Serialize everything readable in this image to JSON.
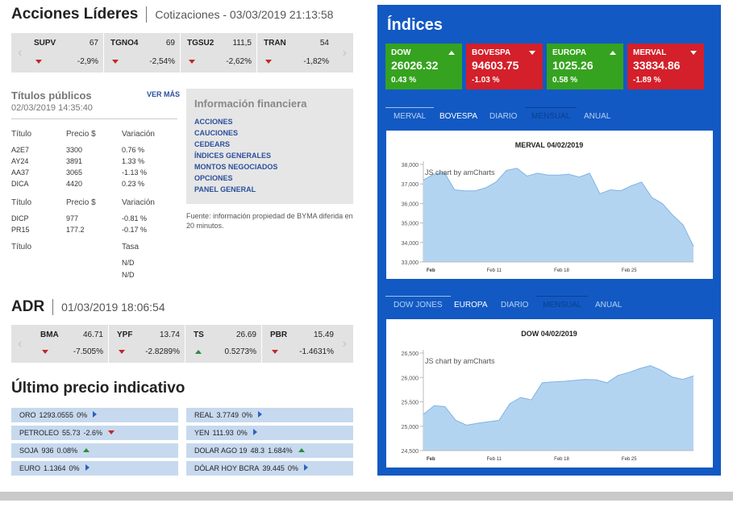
{
  "acciones": {
    "title": "Acciones Líderes",
    "subtitle": "Cotizaciones - 03/03/2019 21:13:58",
    "tickers": [
      {
        "name": "SUPV",
        "price": "67",
        "change": "-2,9%",
        "dir": "down"
      },
      {
        "name": "TGNO4",
        "price": "69",
        "change": "-2,54%",
        "dir": "down"
      },
      {
        "name": "TGSU2",
        "price": "111,5",
        "change": "-2,62%",
        "dir": "down"
      },
      {
        "name": "TRAN",
        "price": "54",
        "change": "-1,82%",
        "dir": "down"
      }
    ]
  },
  "titulos": {
    "title": "Títulos públicos",
    "date": "02/03/2019 14:35:40",
    "more": "VER MÁS",
    "group1": {
      "headers": [
        "Título",
        "Precio $",
        "Variación"
      ],
      "rows": [
        [
          "A2E7",
          "3300",
          "0.76 %"
        ],
        [
          "AY24",
          "3891",
          "1.33 %"
        ],
        [
          "AA37",
          "3065",
          "-1.13 %"
        ],
        [
          "DICA",
          "4420",
          "0.23 %"
        ]
      ]
    },
    "group2": {
      "headers": [
        "Título",
        "Precio $",
        "Variación"
      ],
      "rows": [
        [
          "DICP",
          "977",
          "-0.81 %"
        ],
        [
          "PR15",
          "177.2",
          "-0.17 %"
        ]
      ]
    },
    "group3": {
      "headers": [
        "Título",
        "",
        "Tasa"
      ],
      "rows": [
        [
          "",
          "",
          "N/D"
        ],
        [
          "",
          "",
          "N/D"
        ]
      ]
    }
  },
  "info": {
    "title": "Información financiera",
    "links": [
      "ACCIONES",
      "CAUCIONES",
      "CEDEARS",
      "ÍNDICES GENERALES",
      "MONTOS NEGOCIADOS",
      "OPCIONES",
      "PANEL GENERAL"
    ],
    "fuente": "Fuente: información propiedad de BYMA diferida en 20 minutos."
  },
  "adr": {
    "title": "ADR",
    "subtitle": "01/03/2019 18:06:54",
    "tickers": [
      {
        "name": "BMA",
        "price": "46.71",
        "change": "-7.505%",
        "dir": "down"
      },
      {
        "name": "YPF",
        "price": "13.74",
        "change": "-2.8289%",
        "dir": "down"
      },
      {
        "name": "TS",
        "price": "26.69",
        "change": "0.5273%",
        "dir": "up"
      },
      {
        "name": "PBR",
        "price": "15.49",
        "change": "-1.4631%",
        "dir": "down"
      }
    ]
  },
  "ultimo": {
    "title": "Último precio indicativo",
    "left": [
      {
        "name": "ORO",
        "value": "1293.0555",
        "change": "0%",
        "dir": "flat"
      },
      {
        "name": "PETROLEO",
        "value": "55.73",
        "change": "-2.6%",
        "dir": "down"
      },
      {
        "name": "SOJA",
        "value": "936",
        "change": "0.08%",
        "dir": "up"
      },
      {
        "name": "EURO",
        "value": "1.1364",
        "change": "0%",
        "dir": "flat"
      }
    ],
    "right": [
      {
        "name": "REAL",
        "value": "3.7749",
        "change": "0%",
        "dir": "flat"
      },
      {
        "name": "YEN",
        "value": "111.93",
        "change": "0%",
        "dir": "flat"
      },
      {
        "name": "DOLAR AGO 19",
        "value": "48.3",
        "change": "1.684%",
        "dir": "up"
      },
      {
        "name": "DÓLAR HOY BCRA",
        "value": "39.445",
        "change": "0%",
        "dir": "flat"
      }
    ]
  },
  "indices": {
    "title": "Índices",
    "cards": [
      {
        "name": "DOW",
        "value": "26026.32",
        "pct": "0.43 %",
        "dir": "up",
        "color": "#35a31f"
      },
      {
        "name": "BOVESPA",
        "value": "94603.75",
        "pct": "-1.03 %",
        "dir": "down",
        "color": "#d3202a"
      },
      {
        "name": "EUROPA",
        "value": "1025.26",
        "pct": "0.58 %",
        "dir": "up",
        "color": "#35a31f"
      },
      {
        "name": "MERVAL",
        "value": "33834.86",
        "pct": "-1.89 %",
        "dir": "down",
        "color": "#d3202a"
      }
    ],
    "tabs1": [
      "MERVAL",
      "BOVESPA",
      "DIARIO",
      "MENSUAL",
      "ANUAL"
    ],
    "tabs2": [
      "DOW JONES",
      "EUROPA",
      "DIARIO",
      "MENSUAL",
      "ANUAL"
    ]
  },
  "chart_data": [
    {
      "type": "area",
      "title": "MERVAL 04/02/2019",
      "watermark": "JS chart by amCharts",
      "ylim": [
        33000,
        38000
      ],
      "yticks": [
        "33,000",
        "34,000",
        "35,000",
        "36,000",
        "37,000",
        "38,000"
      ],
      "xticks": [
        "Feb",
        "Feb 11",
        "Feb 18",
        "Feb 25"
      ],
      "values": [
        37200,
        37500,
        37600,
        36700,
        36650,
        36650,
        36800,
        37100,
        37700,
        37800,
        37400,
        37550,
        37450,
        37450,
        37500,
        37350,
        37550,
        36500,
        36700,
        36650,
        36900,
        37100,
        36300,
        36000,
        35400,
        34900,
        33800
      ],
      "grid": false,
      "color": "#b3d4f1"
    },
    {
      "type": "area",
      "title": "DOW 04/02/2019",
      "watermark": "JS chart by amCharts",
      "ylim": [
        24500,
        26500
      ],
      "yticks": [
        "24,500",
        "25,000",
        "25,500",
        "26,000",
        "26,500"
      ],
      "xticks": [
        "Feb",
        "Feb 11",
        "Feb 18",
        "Feb 25"
      ],
      "values": [
        25240,
        25420,
        25400,
        25120,
        25020,
        25060,
        25090,
        25120,
        25460,
        25590,
        25540,
        25890,
        25910,
        25920,
        25940,
        25960,
        25950,
        25890,
        26040,
        26100,
        26180,
        26240,
        26150,
        26010,
        25960,
        26030
      ],
      "grid": false,
      "color": "#b3d4f1"
    }
  ]
}
